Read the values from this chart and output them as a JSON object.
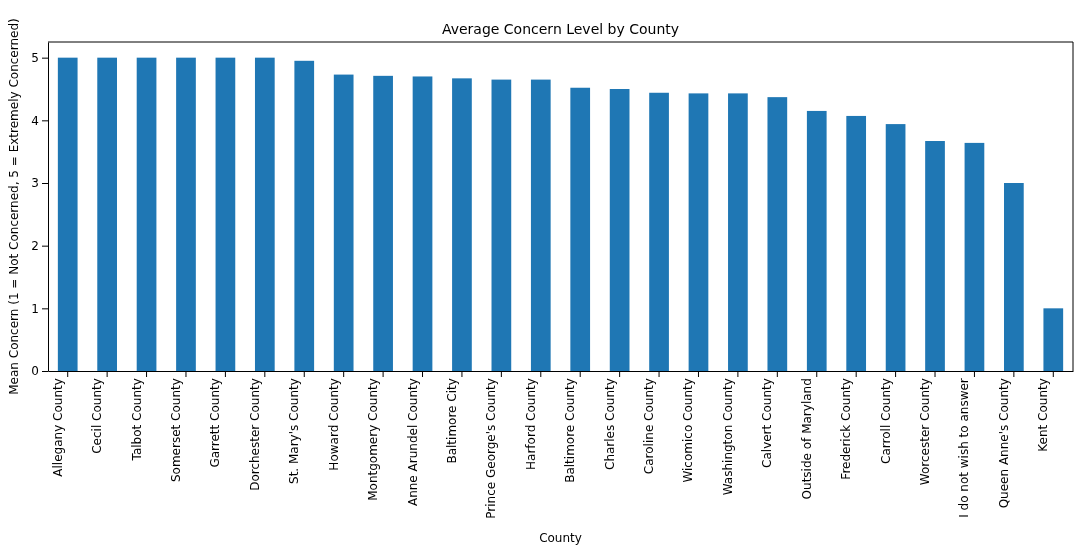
{
  "chart_data": {
    "type": "bar",
    "title": "Average Concern Level by County",
    "xlabel": "County",
    "ylabel": "Mean Concern (1 = Not Concerned, 5 = Extremely Concerned)",
    "categories": [
      "Allegany County",
      "Cecil County",
      "Talbot County",
      "Somerset County",
      "Garrett County",
      "Dorchester County",
      "St. Mary's County",
      "Howard County",
      "Montgomery County",
      "Anne Arundel County",
      "Baltimore City",
      "Prince George's County",
      "Harford County",
      "Baltimore County",
      "Charles County",
      "Caroline County",
      "Wicomico County",
      "Washington County",
      "Calvert County",
      "Outside of Maryland",
      "Frederick County",
      "Carroll County",
      "Worcester County",
      "I do not wish to answer",
      "Queen Anne's County",
      "Kent County"
    ],
    "values": [
      5,
      5,
      5,
      5,
      5,
      5,
      4.95,
      4.73,
      4.71,
      4.7,
      4.67,
      4.65,
      4.65,
      4.52,
      4.5,
      4.44,
      4.43,
      4.43,
      4.37,
      4.15,
      4.07,
      3.94,
      3.67,
      3.64,
      3,
      1
    ],
    "color": "#1f77b4",
    "ylim": [
      0,
      5.25
    ],
    "yticks": [
      0,
      1,
      2,
      3,
      4,
      5
    ]
  }
}
